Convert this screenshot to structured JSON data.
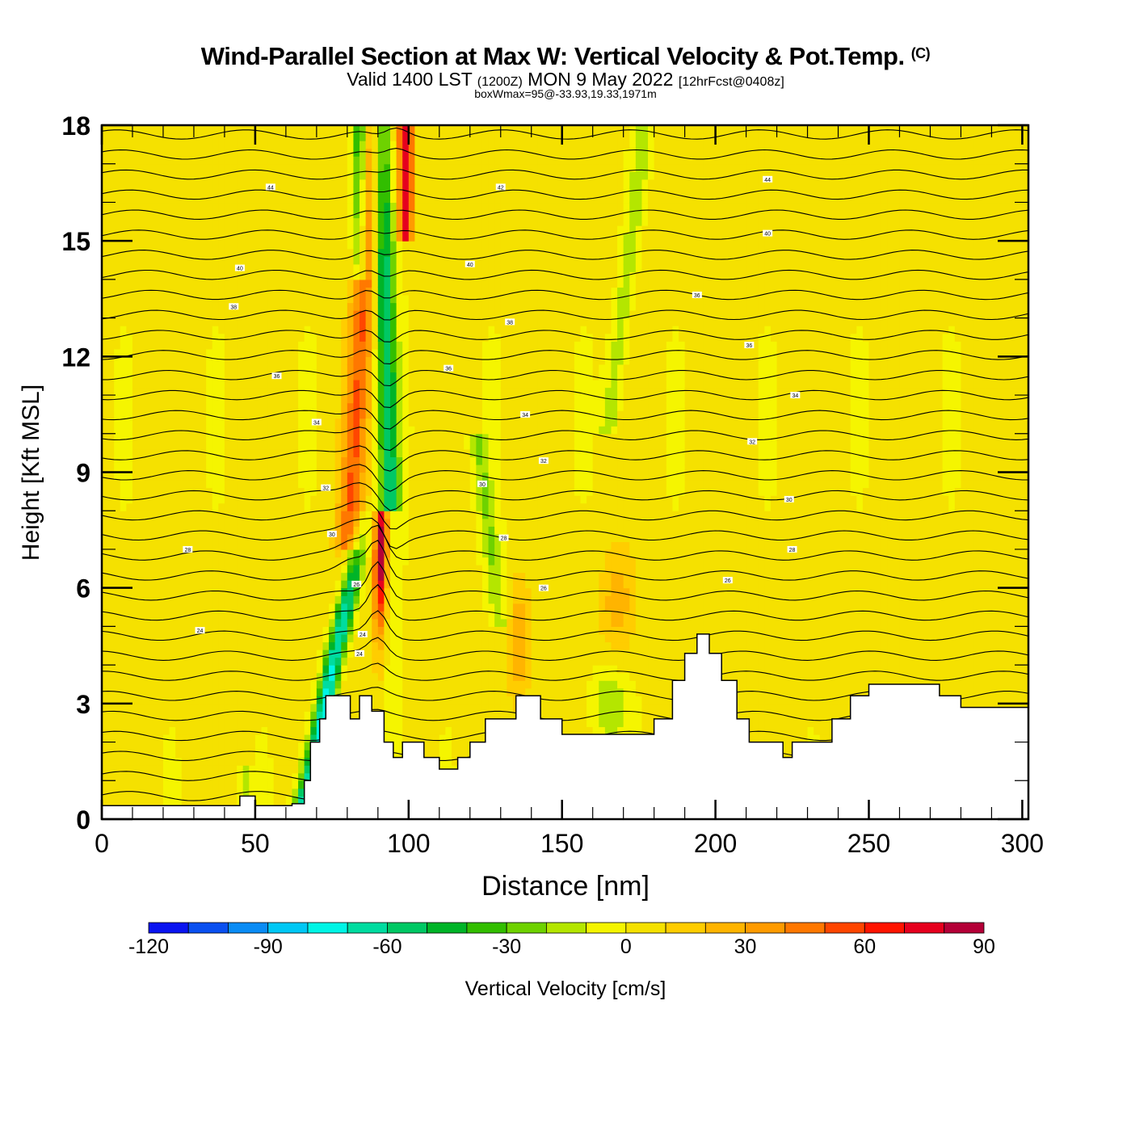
{
  "chart_data": {
    "type": "heatmap",
    "title": "Wind-Parallel Section at Max W: Vertical Velocity & Pot.Temp.",
    "title_mark": "(C)",
    "subtitle_valid": "Valid 1400 LST",
    "subtitle_utc": "(1200Z)",
    "subtitle_date": "MON 9 May 2022",
    "subtitle_fcst": "[12hrFcst@0408z]",
    "subtitle2": "boxWmax=95@-33.93,19.33,1971m",
    "xlabel": "Distance [nm]",
    "ylabel": "Height [Kft MSL]",
    "xlim": [
      0,
      302
    ],
    "ylim": [
      0,
      18
    ],
    "xticks": [
      "0",
      "50",
      "100",
      "150",
      "200",
      "250",
      "300"
    ],
    "xtick_values": [
      0,
      50,
      100,
      150,
      200,
      250,
      300
    ],
    "yticks": [
      "0",
      "3",
      "6",
      "9",
      "12",
      "15",
      "18"
    ],
    "ytick_values": [
      0,
      3,
      6,
      9,
      12,
      15,
      18
    ],
    "colorbar": {
      "label": "Vertical Velocity [cm/s]",
      "levels": [
        -120,
        -110,
        -100,
        -90,
        -80,
        -70,
        -60,
        -50,
        -40,
        -30,
        -20,
        -10,
        0,
        10,
        20,
        30,
        40,
        50,
        60,
        70,
        80,
        90
      ],
      "tick_labels": [
        "-120",
        "-90",
        "-60",
        "-30",
        "0",
        "30",
        "60",
        "90"
      ],
      "tick_values": [
        -120,
        -90,
        -60,
        -30,
        0,
        30,
        60,
        90
      ],
      "colors": [
        "#0a14f0",
        "#0a50f0",
        "#0a8cf5",
        "#00c8f5",
        "#00f5e6",
        "#00dca0",
        "#00c864",
        "#00b428",
        "#32be00",
        "#6ed200",
        "#b4e600",
        "#f5f500",
        "#f5e100",
        "#ffcd00",
        "#ffb400",
        "#ff9b00",
        "#ff7800",
        "#ff4600",
        "#ff1400",
        "#e6001e",
        "#b40037"
      ]
    },
    "contour_field": "Potential Temperature [C]",
    "contour_labels": [
      "44",
      "42",
      "40",
      "38",
      "36",
      "34",
      "32",
      "30",
      "28",
      "26",
      "24"
    ],
    "features": {
      "updraft_max_cm_s": 95,
      "updraft_location_nm": 91,
      "downdraft_location_nm": 88,
      "terrain_kft": [
        {
          "x": 0,
          "h": 0.35
        },
        {
          "x": 40,
          "h": 0.35
        },
        {
          "x": 45,
          "h": 0.6
        },
        {
          "x": 50,
          "h": 0.35
        },
        {
          "x": 62,
          "h": 0.4
        },
        {
          "x": 66,
          "h": 1.0
        },
        {
          "x": 68,
          "h": 2.0
        },
        {
          "x": 71,
          "h": 2.6
        },
        {
          "x": 73,
          "h": 3.2
        },
        {
          "x": 80,
          "h": 3.2
        },
        {
          "x": 81,
          "h": 2.6
        },
        {
          "x": 84,
          "h": 3.2
        },
        {
          "x": 88,
          "h": 2.8
        },
        {
          "x": 92,
          "h": 2.0
        },
        {
          "x": 95,
          "h": 1.6
        },
        {
          "x": 98,
          "h": 2.0
        },
        {
          "x": 105,
          "h": 1.6
        },
        {
          "x": 110,
          "h": 1.3
        },
        {
          "x": 116,
          "h": 1.6
        },
        {
          "x": 120,
          "h": 2.0
        },
        {
          "x": 125,
          "h": 2.6
        },
        {
          "x": 135,
          "h": 3.2
        },
        {
          "x": 143,
          "h": 2.6
        },
        {
          "x": 150,
          "h": 2.2
        },
        {
          "x": 170,
          "h": 2.2
        },
        {
          "x": 180,
          "h": 2.6
        },
        {
          "x": 186,
          "h": 3.6
        },
        {
          "x": 190,
          "h": 4.3
        },
        {
          "x": 194,
          "h": 4.8
        },
        {
          "x": 198,
          "h": 4.3
        },
        {
          "x": 202,
          "h": 3.6
        },
        {
          "x": 207,
          "h": 2.6
        },
        {
          "x": 211,
          "h": 2.0
        },
        {
          "x": 222,
          "h": 1.6
        },
        {
          "x": 225,
          "h": 2.0
        },
        {
          "x": 238,
          "h": 2.6
        },
        {
          "x": 244,
          "h": 3.2
        },
        {
          "x": 250,
          "h": 3.5
        },
        {
          "x": 273,
          "h": 3.2
        },
        {
          "x": 280,
          "h": 2.9
        },
        {
          "x": 302,
          "h": 2.9
        }
      ]
    }
  }
}
